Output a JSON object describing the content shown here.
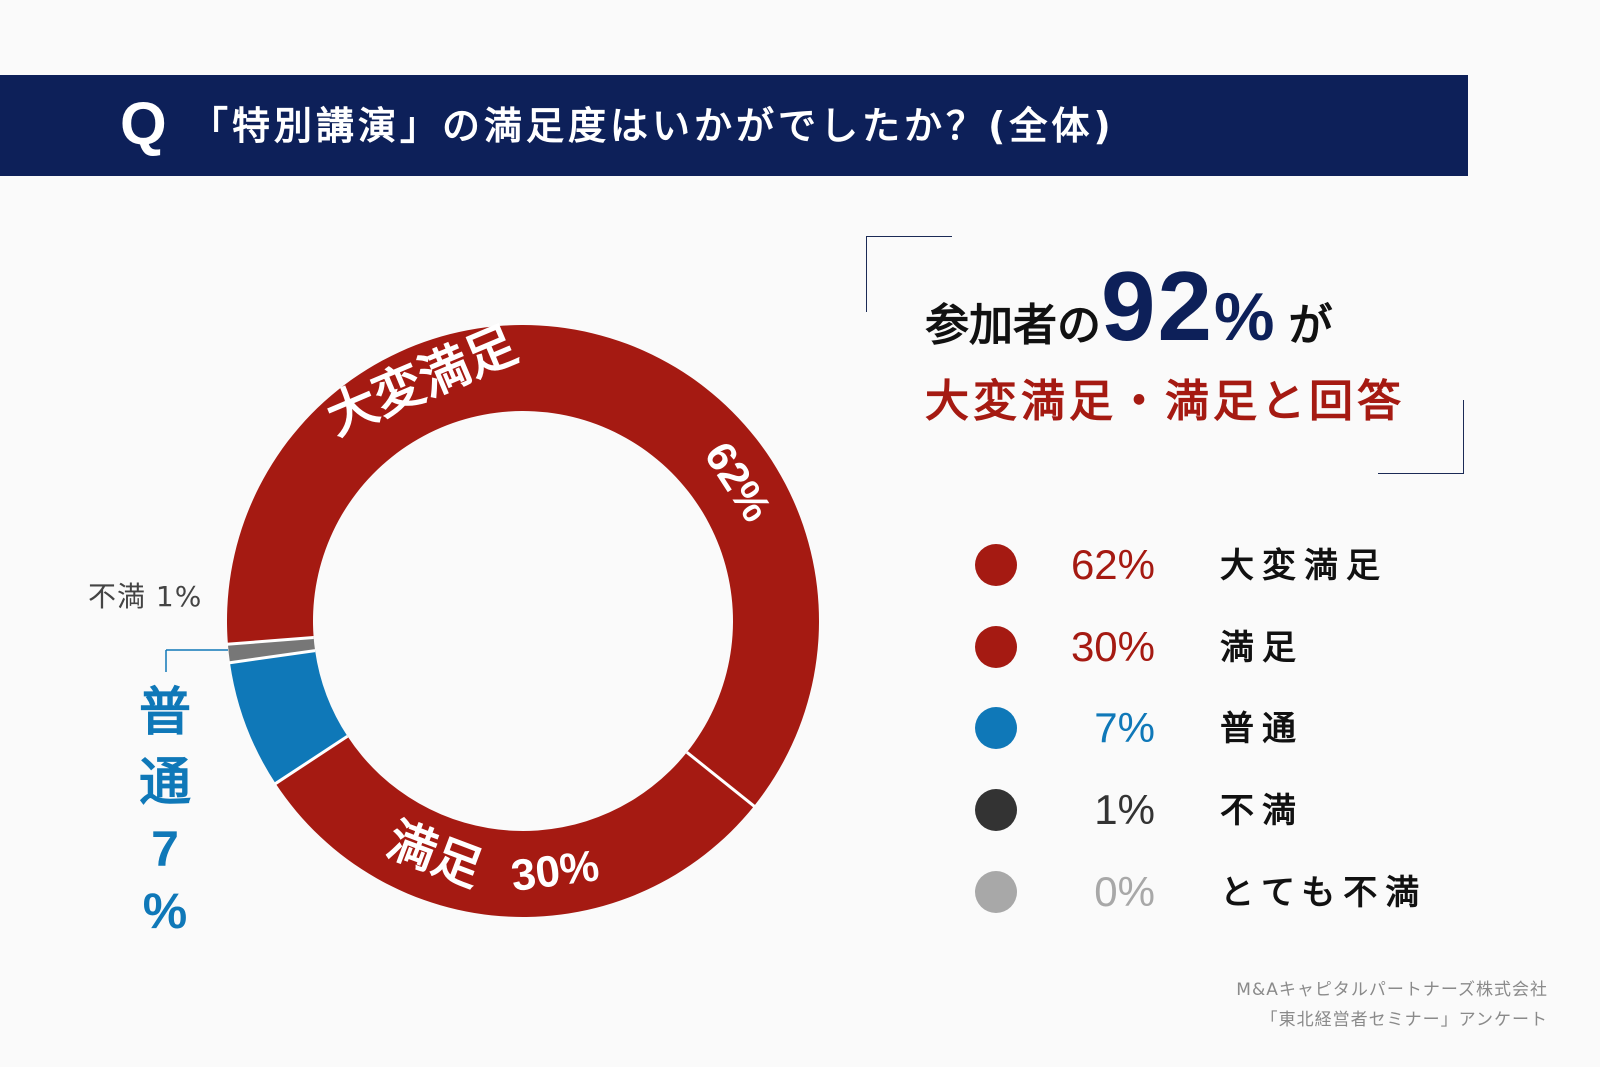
{
  "header": {
    "q": "Q",
    "question": "「特別講演」の満足度はいかがでしたか？(全体)"
  },
  "summary": {
    "pre": "参加者の",
    "big": "92",
    "pct": "%",
    "post": "が",
    "subline": "大変満足・満足と回答"
  },
  "colors": {
    "header_bg": "#0d2059",
    "red": "#a51a12",
    "blue": "#0f78b8",
    "dark_gray": "#333333",
    "mid_gray": "#777777",
    "light_gray": "#a8a8a8"
  },
  "chart_data": {
    "type": "pie",
    "donut": true,
    "slices": [
      {
        "label": "大変満足",
        "value": 62,
        "color": "#a51a12"
      },
      {
        "label": "満足",
        "value": 30,
        "color": "#a51a12"
      },
      {
        "label": "普通",
        "value": 7,
        "color": "#0f78b8"
      },
      {
        "label": "不満",
        "value": 1,
        "color": "#777777"
      },
      {
        "label": "とても不満",
        "value": 0,
        "color": "#a8a8a8"
      }
    ],
    "slice_labels": {
      "s0_name": "大変満足",
      "s0_value": "62%",
      "s1_name": "満足",
      "s1_value": "30%",
      "s2_name_top": "普",
      "s2_name_bottom": "通",
      "s2_value": "7",
      "s2_unit": "%",
      "s3_text": "不満 1%"
    },
    "legend": [
      {
        "pct": "62%",
        "label": "大変満足",
        "dot_color": "#a51a12",
        "pct_color": "#a51a12"
      },
      {
        "pct": "30%",
        "label": "満足",
        "dot_color": "#a51a12",
        "pct_color": "#a51a12"
      },
      {
        "pct": "7%",
        "label": "普通",
        "dot_color": "#0f78b8",
        "pct_color": "#0f78b8"
      },
      {
        "pct": "1%",
        "label": "不満",
        "dot_color": "#333333",
        "pct_color": "#333333"
      },
      {
        "pct": "0%",
        "label": "とても不満",
        "dot_color": "#a8a8a8",
        "pct_color": "#a8a8a8"
      }
    ]
  },
  "source": {
    "line1": "M&Aキャピタルパートナーズ株式会社",
    "line2": "「東北経営者セミナー」アンケート"
  }
}
